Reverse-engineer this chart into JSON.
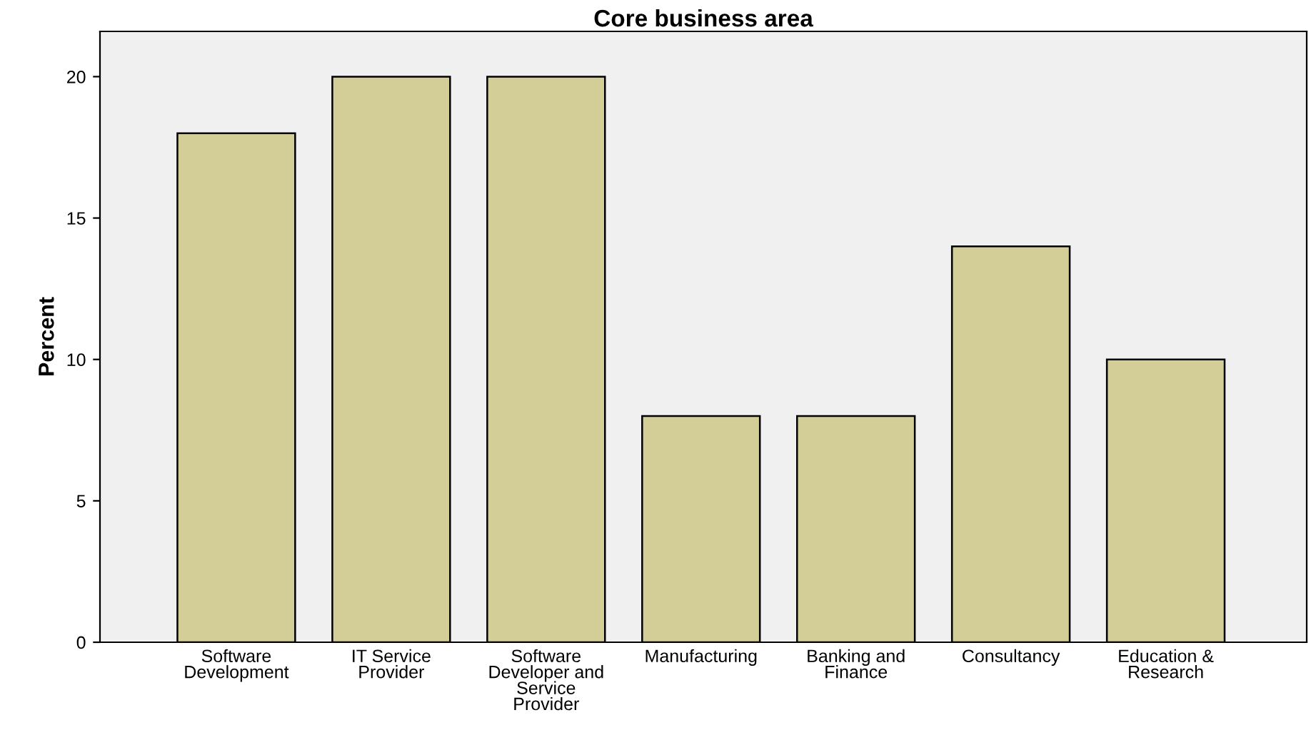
{
  "chart_data": {
    "type": "bar",
    "title": "Core business area",
    "ylabel": "Percent",
    "categories": [
      "Software\nDevelopment",
      "IT Service\nProvider",
      "Software\nDeveloper and\nService\nProvider",
      "Manufacturing",
      "Banking and\nFinance",
      "Consultancy",
      "Education &\nResearch"
    ],
    "values": [
      18,
      20,
      20,
      8,
      8,
      14,
      10
    ],
    "color": "#d3ce97",
    "ylim": [
      0,
      21.6
    ],
    "yticks": [
      0,
      5,
      10,
      15,
      20
    ],
    "grid": false,
    "legend": false
  }
}
